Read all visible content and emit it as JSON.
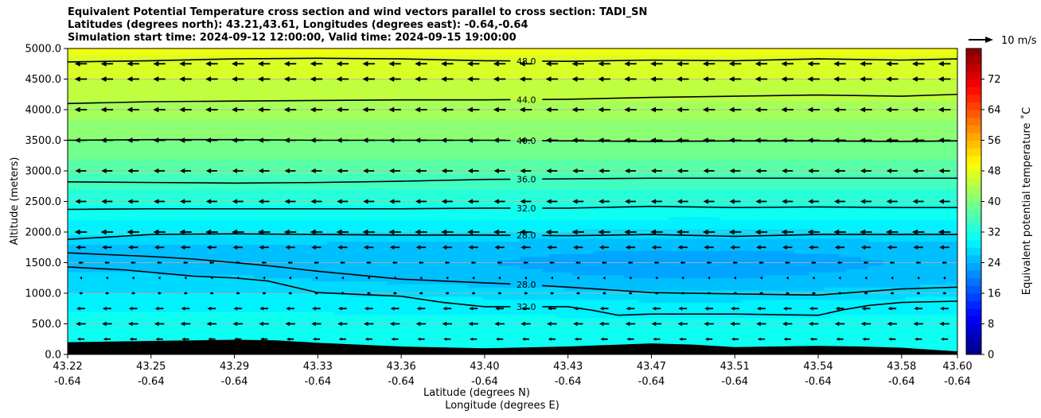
{
  "title_lines": [
    "Equivalent Potential Temperature cross section and wind vectors parallel to cross section: TADI_SN",
    "Latitudes (degrees north): 43.21,43.61, Longitudes (degrees east): -0.64,-0.64",
    "Simulation start time: 2024-09-12 12:00:00, Valid time: 2024-09-15 19:00:00"
  ],
  "chart_data": {
    "type": "heatmap",
    "subtype": "filled contour cross-section with quiver and contour lines",
    "ylabel": "Altitude (meters)",
    "xlabel_line1": "Latitude (degrees N)",
    "xlabel_line2": "Longitude (degrees E)",
    "x_tick_lat": [
      "43.22",
      "43.25",
      "43.29",
      "43.33",
      "43.36",
      "43.40",
      "43.43",
      "43.47",
      "43.51",
      "43.54",
      "43.58",
      "43.60"
    ],
    "x_tick_lon": [
      "-0.64",
      "-0.64",
      "-0.64",
      "-0.64",
      "-0.64",
      "-0.64",
      "-0.64",
      "-0.64",
      "-0.64",
      "-0.64",
      "-0.64",
      "-0.64"
    ],
    "x_tick_positions": [
      0,
      1,
      2,
      3,
      4,
      5,
      6,
      7,
      8,
      9,
      10,
      10.67
    ],
    "xlim": [
      0,
      10.67
    ],
    "y_ticks": [
      "0.0",
      "500.0",
      "1000.0",
      "1500.0",
      "2000.0",
      "2500.0",
      "3000.0",
      "3500.0",
      "4000.0",
      "4500.0",
      "5000.0"
    ],
    "ylim": [
      0,
      5000
    ],
    "grid": true,
    "colorbar": {
      "label": "Equivalent potential temperature ˚C",
      "range": [
        0,
        80
      ],
      "tick_values": [
        0,
        8,
        16,
        24,
        32,
        40,
        48,
        56,
        64,
        72
      ],
      "tick_labels": [
        "0",
        "8",
        "16",
        "24",
        "32",
        "40",
        "48",
        "56",
        "64",
        "72"
      ],
      "colormap": "jet",
      "levels": 40
    },
    "theta_e_profile": [
      {
        "z": 0,
        "v": 31
      },
      {
        "z": 300,
        "v": 31
      },
      {
        "z": 600,
        "v": 30.5
      },
      {
        "z": 900,
        "v": 29
      },
      {
        "z": 1200,
        "v": 26.5
      },
      {
        "z": 1500,
        "v": 25.5
      },
      {
        "z": 1800,
        "v": 26
      },
      {
        "z": 2000,
        "v": 28.5
      },
      {
        "z": 2300,
        "v": 31
      },
      {
        "z": 2700,
        "v": 34
      },
      {
        "z": 3200,
        "v": 38
      },
      {
        "z": 3600,
        "v": 40.5
      },
      {
        "z": 4000,
        "v": 43
      },
      {
        "z": 4500,
        "v": 46
      },
      {
        "z": 5000,
        "v": 48.5
      }
    ],
    "cold_core_dip": {
      "x_center": 7.5,
      "x_width": 3.5,
      "z_center": 1400,
      "z_width": 600,
      "amplitude": 2.5
    },
    "contours": [
      {
        "label": "48.0",
        "label_x": 5.5,
        "x": [
          0,
          1,
          2,
          3,
          4,
          5,
          6,
          7,
          8,
          9,
          10,
          10.67
        ],
        "z": [
          4780,
          4800,
          4830,
          4840,
          4830,
          4800,
          4790,
          4810,
          4800,
          4830,
          4810,
          4830
        ]
      },
      {
        "label": "44.0",
        "label_x": 5.5,
        "x": [
          0,
          1,
          2,
          3,
          4,
          5,
          6,
          7,
          8,
          9,
          10,
          10.67
        ],
        "z": [
          4100,
          4130,
          4140,
          4150,
          4160,
          4160,
          4170,
          4200,
          4220,
          4240,
          4220,
          4250
        ]
      },
      {
        "label": "40.0",
        "label_x": 5.5,
        "x": [
          0,
          1,
          2,
          3,
          4,
          5,
          6,
          7,
          8,
          9,
          10,
          10.67
        ],
        "z": [
          3500,
          3510,
          3510,
          3500,
          3500,
          3500,
          3490,
          3480,
          3490,
          3490,
          3480,
          3490
        ]
      },
      {
        "label": "36.0",
        "label_x": 5.5,
        "x": [
          0,
          1,
          2,
          3,
          4,
          5,
          6,
          7,
          8,
          9,
          10,
          10.67
        ],
        "z": [
          2820,
          2810,
          2800,
          2810,
          2830,
          2860,
          2870,
          2880,
          2880,
          2880,
          2880,
          2880
        ]
      },
      {
        "label": "32.0",
        "label_x": 5.5,
        "x": [
          0,
          1,
          2,
          3,
          4,
          5,
          6,
          7,
          8,
          9,
          10,
          10.67
        ],
        "z": [
          2370,
          2380,
          2380,
          2380,
          2380,
          2390,
          2390,
          2420,
          2400,
          2410,
          2400,
          2400
        ]
      },
      {
        "label": "28.0",
        "label_x": 5.5,
        "x": [
          0,
          1,
          2,
          3,
          4,
          5,
          6,
          7,
          8,
          9,
          10,
          10.67
        ],
        "z": [
          1880,
          1960,
          1970,
          1960,
          1950,
          1950,
          1940,
          1960,
          1930,
          1960,
          1960,
          1960
        ]
      },
      {
        "label": "28.0",
        "label_x": 5.5,
        "x": [
          0,
          0.5,
          1,
          1.5,
          2,
          2.4,
          3,
          4,
          5,
          5.5,
          6,
          7,
          8,
          9,
          10,
          10.67
        ],
        "z": [
          1660,
          1630,
          1600,
          1560,
          1500,
          1450,
          1360,
          1230,
          1170,
          1140,
          1100,
          1010,
          990,
          970,
          1070,
          1100
        ]
      },
      {
        "label": "32.0",
        "label_x": 5.5,
        "x": [
          0,
          0.7,
          1.5,
          2,
          2.4,
          3,
          4,
          4.5,
          5,
          6,
          6.3,
          6.6,
          7,
          8,
          9,
          9.3,
          9.6,
          10,
          10.67
        ],
        "z": [
          1430,
          1380,
          1280,
          1250,
          1200,
          1010,
          950,
          850,
          780,
          780,
          720,
          640,
          660,
          660,
          640,
          730,
          800,
          850,
          870
        ]
      }
    ],
    "terrain": {
      "x": [
        0,
        1,
        2,
        2.5,
        3,
        4,
        5,
        6,
        7,
        7.5,
        8,
        9,
        9.5,
        10,
        10.67
      ],
      "z": [
        200,
        220,
        240,
        230,
        190,
        130,
        100,
        130,
        180,
        160,
        120,
        140,
        130,
        110,
        50
      ]
    },
    "wind": {
      "direction": "southward (parallel to cross section, toward lower latitude)",
      "reference_vector_label": "10 m/s",
      "reference_speed": 10,
      "speed_profile": [
        {
          "z": 250,
          "u": -3
        },
        {
          "z": 500,
          "u": -4
        },
        {
          "z": 750,
          "u": -3.5
        },
        {
          "z": 1000,
          "u": -1.5
        },
        {
          "z": 1250,
          "u": -1
        },
        {
          "z": 1500,
          "u": -2
        },
        {
          "z": 1750,
          "u": -4
        },
        {
          "z": 2000,
          "u": -5
        },
        {
          "z": 2500,
          "u": -4.5
        },
        {
          "z": 3000,
          "u": -4.5
        },
        {
          "z": 3500,
          "u": -5
        },
        {
          "z": 4000,
          "u": -5
        },
        {
          "z": 4500,
          "u": -5
        },
        {
          "z": 4750,
          "u": -5
        }
      ]
    }
  }
}
